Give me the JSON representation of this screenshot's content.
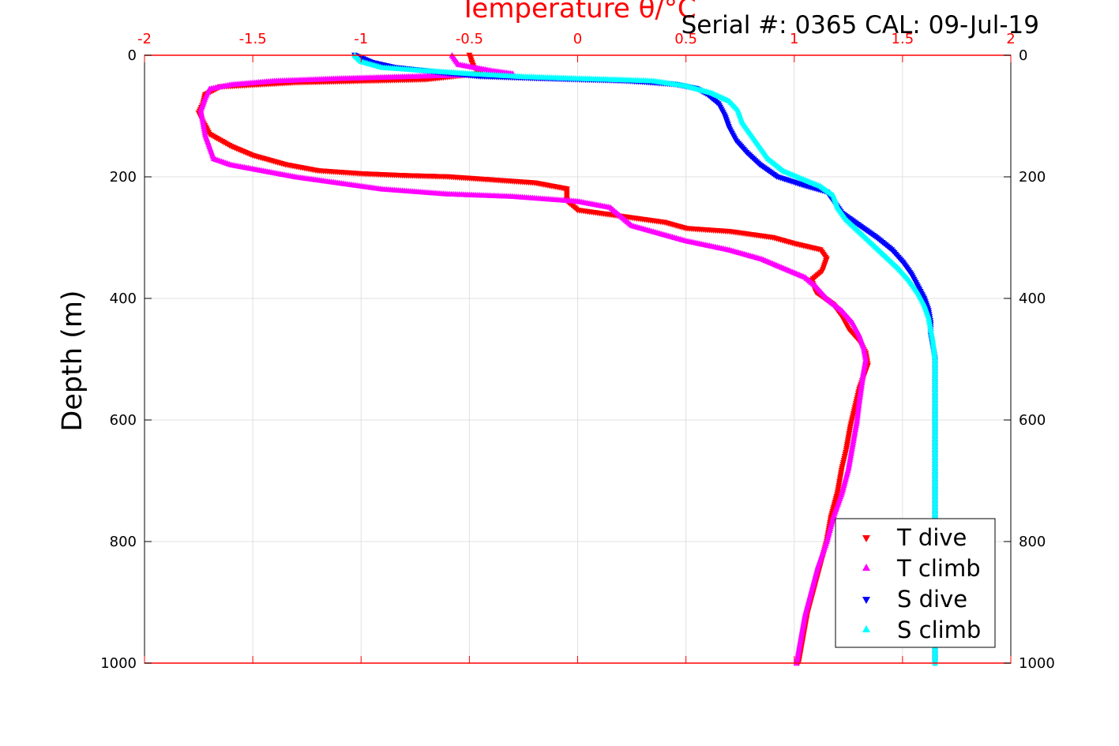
{
  "header": {
    "serial_info": "Serial #: 0365  CAL: 09-Jul-19"
  },
  "chart_data": {
    "type": "scatter",
    "title": "Temperature θ/°C",
    "xlabel": "Temperature θ/°C",
    "ylabel": "Depth (m)",
    "xlim": [
      -2,
      2
    ],
    "ylim": [
      0,
      1000
    ],
    "y_reversed": true,
    "x_ticks": [
      "-2",
      "-1.5",
      "-1",
      "-0.5",
      "0",
      "0.5",
      "1",
      "1.5",
      "2"
    ],
    "y_ticks": [
      "0",
      "200",
      "400",
      "600",
      "800",
      "1000"
    ],
    "grid": true,
    "legend_position": "bottom-right",
    "colors": {
      "x_axis": "#ff0000",
      "grid": "#e0e0e0"
    },
    "series": [
      {
        "name": "T dive",
        "color": "#ff0000",
        "marker": "triangle-down",
        "points": [
          [
            -0.5,
            0
          ],
          [
            -0.48,
            20
          ],
          [
            -0.45,
            30
          ],
          [
            -0.7,
            40
          ],
          [
            -1.3,
            45
          ],
          [
            -1.65,
            52
          ],
          [
            -1.72,
            65
          ],
          [
            -1.73,
            80
          ],
          [
            -1.75,
            95
          ],
          [
            -1.73,
            110
          ],
          [
            -1.7,
            130
          ],
          [
            -1.65,
            140
          ],
          [
            -1.6,
            150
          ],
          [
            -1.5,
            165
          ],
          [
            -1.35,
            180
          ],
          [
            -1.2,
            190
          ],
          [
            -1.0,
            195
          ],
          [
            -0.8,
            198
          ],
          [
            -0.6,
            200
          ],
          [
            -0.4,
            205
          ],
          [
            -0.2,
            210
          ],
          [
            -0.05,
            220
          ],
          [
            -0.05,
            240
          ],
          [
            0.0,
            255
          ],
          [
            0.2,
            265
          ],
          [
            0.4,
            275
          ],
          [
            0.5,
            285
          ],
          [
            0.7,
            290
          ],
          [
            0.9,
            300
          ],
          [
            1.0,
            310
          ],
          [
            1.12,
            320
          ],
          [
            1.15,
            335
          ],
          [
            1.13,
            355
          ],
          [
            1.08,
            370
          ],
          [
            1.1,
            390
          ],
          [
            1.18,
            410
          ],
          [
            1.22,
            430
          ],
          [
            1.25,
            450
          ],
          [
            1.3,
            470
          ],
          [
            1.33,
            490
          ],
          [
            1.34,
            510
          ],
          [
            1.32,
            530
          ],
          [
            1.3,
            550
          ],
          [
            1.28,
            580
          ],
          [
            1.26,
            610
          ],
          [
            1.24,
            650
          ],
          [
            1.22,
            680
          ],
          [
            1.2,
            720
          ],
          [
            1.17,
            760
          ],
          [
            1.15,
            800
          ],
          [
            1.12,
            840
          ],
          [
            1.09,
            880
          ],
          [
            1.06,
            920
          ],
          [
            1.04,
            960
          ],
          [
            1.02,
            1000
          ]
        ]
      },
      {
        "name": "T climb",
        "color": "#ff00ff",
        "marker": "triangle-up",
        "points": [
          [
            -0.58,
            0
          ],
          [
            -0.55,
            15
          ],
          [
            -0.4,
            25
          ],
          [
            -0.3,
            30
          ],
          [
            -1.1,
            38
          ],
          [
            -1.4,
            42
          ],
          [
            -1.6,
            48
          ],
          [
            -1.7,
            55
          ],
          [
            -1.72,
            70
          ],
          [
            -1.74,
            90
          ],
          [
            -1.73,
            110
          ],
          [
            -1.72,
            130
          ],
          [
            -1.7,
            150
          ],
          [
            -1.68,
            170
          ],
          [
            -1.6,
            180
          ],
          [
            -1.45,
            190
          ],
          [
            -1.3,
            200
          ],
          [
            -1.1,
            210
          ],
          [
            -0.9,
            220
          ],
          [
            -0.6,
            228
          ],
          [
            -0.3,
            232
          ],
          [
            0.0,
            240
          ],
          [
            0.15,
            250
          ],
          [
            0.2,
            265
          ],
          [
            0.25,
            280
          ],
          [
            0.35,
            290
          ],
          [
            0.5,
            305
          ],
          [
            0.7,
            320
          ],
          [
            0.85,
            335
          ],
          [
            0.95,
            350
          ],
          [
            1.05,
            365
          ],
          [
            1.1,
            380
          ],
          [
            1.15,
            400
          ],
          [
            1.22,
            420
          ],
          [
            1.27,
            440
          ],
          [
            1.3,
            460
          ],
          [
            1.32,
            480
          ],
          [
            1.33,
            500
          ],
          [
            1.32,
            520
          ],
          [
            1.31,
            545
          ],
          [
            1.3,
            570
          ],
          [
            1.29,
            600
          ],
          [
            1.27,
            640
          ],
          [
            1.25,
            680
          ],
          [
            1.22,
            720
          ],
          [
            1.18,
            760
          ],
          [
            1.15,
            800
          ],
          [
            1.11,
            840
          ],
          [
            1.08,
            880
          ],
          [
            1.05,
            920
          ],
          [
            1.03,
            960
          ],
          [
            1.01,
            1000
          ]
        ]
      },
      {
        "name": "S dive",
        "color": "#0000ff",
        "marker": "triangle-down",
        "points": [
          [
            -1.03,
            0
          ],
          [
            -0.95,
            12
          ],
          [
            -0.85,
            20
          ],
          [
            -0.72,
            25
          ],
          [
            -0.6,
            30
          ],
          [
            -0.45,
            35
          ],
          [
            -0.2,
            38
          ],
          [
            0.0,
            40
          ],
          [
            0.2,
            42
          ],
          [
            0.3,
            44
          ],
          [
            0.45,
            48
          ],
          [
            0.55,
            55
          ],
          [
            0.6,
            65
          ],
          [
            0.65,
            80
          ],
          [
            0.68,
            100
          ],
          [
            0.7,
            120
          ],
          [
            0.73,
            140
          ],
          [
            0.78,
            160
          ],
          [
            0.84,
            180
          ],
          [
            0.92,
            200
          ],
          [
            1.05,
            215
          ],
          [
            1.15,
            225
          ],
          [
            1.18,
            240
          ],
          [
            1.22,
            260
          ],
          [
            1.3,
            280
          ],
          [
            1.38,
            300
          ],
          [
            1.45,
            320
          ],
          [
            1.5,
            340
          ],
          [
            1.54,
            360
          ],
          [
            1.57,
            380
          ],
          [
            1.6,
            400
          ],
          [
            1.62,
            420
          ],
          [
            1.63,
            440
          ],
          [
            1.63,
            460
          ],
          [
            1.64,
            480
          ],
          [
            1.65,
            500
          ],
          [
            1.65,
            550
          ],
          [
            1.65,
            600
          ],
          [
            1.65,
            650
          ],
          [
            1.65,
            700
          ],
          [
            1.65,
            750
          ],
          [
            1.65,
            800
          ],
          [
            1.65,
            850
          ],
          [
            1.65,
            900
          ],
          [
            1.65,
            950
          ],
          [
            1.65,
            1000
          ]
        ]
      },
      {
        "name": "S climb",
        "color": "#00ffff",
        "marker": "triangle-up",
        "points": [
          [
            -1.03,
            0
          ],
          [
            -1.0,
            10
          ],
          [
            -0.9,
            20
          ],
          [
            -0.7,
            25
          ],
          [
            -0.5,
            30
          ],
          [
            -0.25,
            35
          ],
          [
            0.0,
            38
          ],
          [
            0.2,
            40
          ],
          [
            0.35,
            42
          ],
          [
            0.5,
            50
          ],
          [
            0.62,
            62
          ],
          [
            0.7,
            75
          ],
          [
            0.74,
            90
          ],
          [
            0.76,
            110
          ],
          [
            0.8,
            130
          ],
          [
            0.84,
            150
          ],
          [
            0.88,
            170
          ],
          [
            0.95,
            190
          ],
          [
            1.05,
            205
          ],
          [
            1.12,
            215
          ],
          [
            1.18,
            230
          ],
          [
            1.2,
            250
          ],
          [
            1.24,
            270
          ],
          [
            1.3,
            290
          ],
          [
            1.36,
            310
          ],
          [
            1.42,
            330
          ],
          [
            1.48,
            350
          ],
          [
            1.53,
            370
          ],
          [
            1.57,
            390
          ],
          [
            1.6,
            410
          ],
          [
            1.62,
            430
          ],
          [
            1.63,
            450
          ],
          [
            1.64,
            470
          ],
          [
            1.65,
            500
          ],
          [
            1.65,
            550
          ],
          [
            1.65,
            600
          ],
          [
            1.65,
            650
          ],
          [
            1.65,
            700
          ],
          [
            1.65,
            750
          ],
          [
            1.65,
            800
          ],
          [
            1.65,
            850
          ],
          [
            1.65,
            900
          ],
          [
            1.65,
            950
          ],
          [
            1.65,
            1000
          ]
        ]
      }
    ]
  }
}
